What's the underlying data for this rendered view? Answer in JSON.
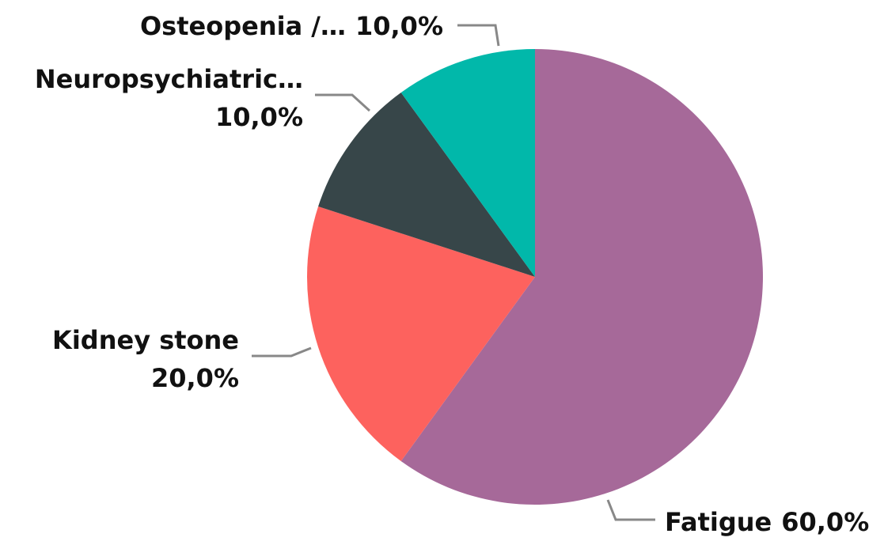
{
  "chart_data": {
    "type": "pie",
    "categories": [
      "Fatigue",
      "Kidney stone",
      "Neuropsychiatric…",
      "Osteopenia /…"
    ],
    "values": [
      60,
      20,
      10,
      10
    ],
    "value_labels": [
      "60,0%",
      "20,0%",
      "10,0%",
      "10,0%"
    ],
    "colors": [
      "#a66999",
      "#fd625e",
      "#374649",
      "#01b8aa"
    ]
  }
}
